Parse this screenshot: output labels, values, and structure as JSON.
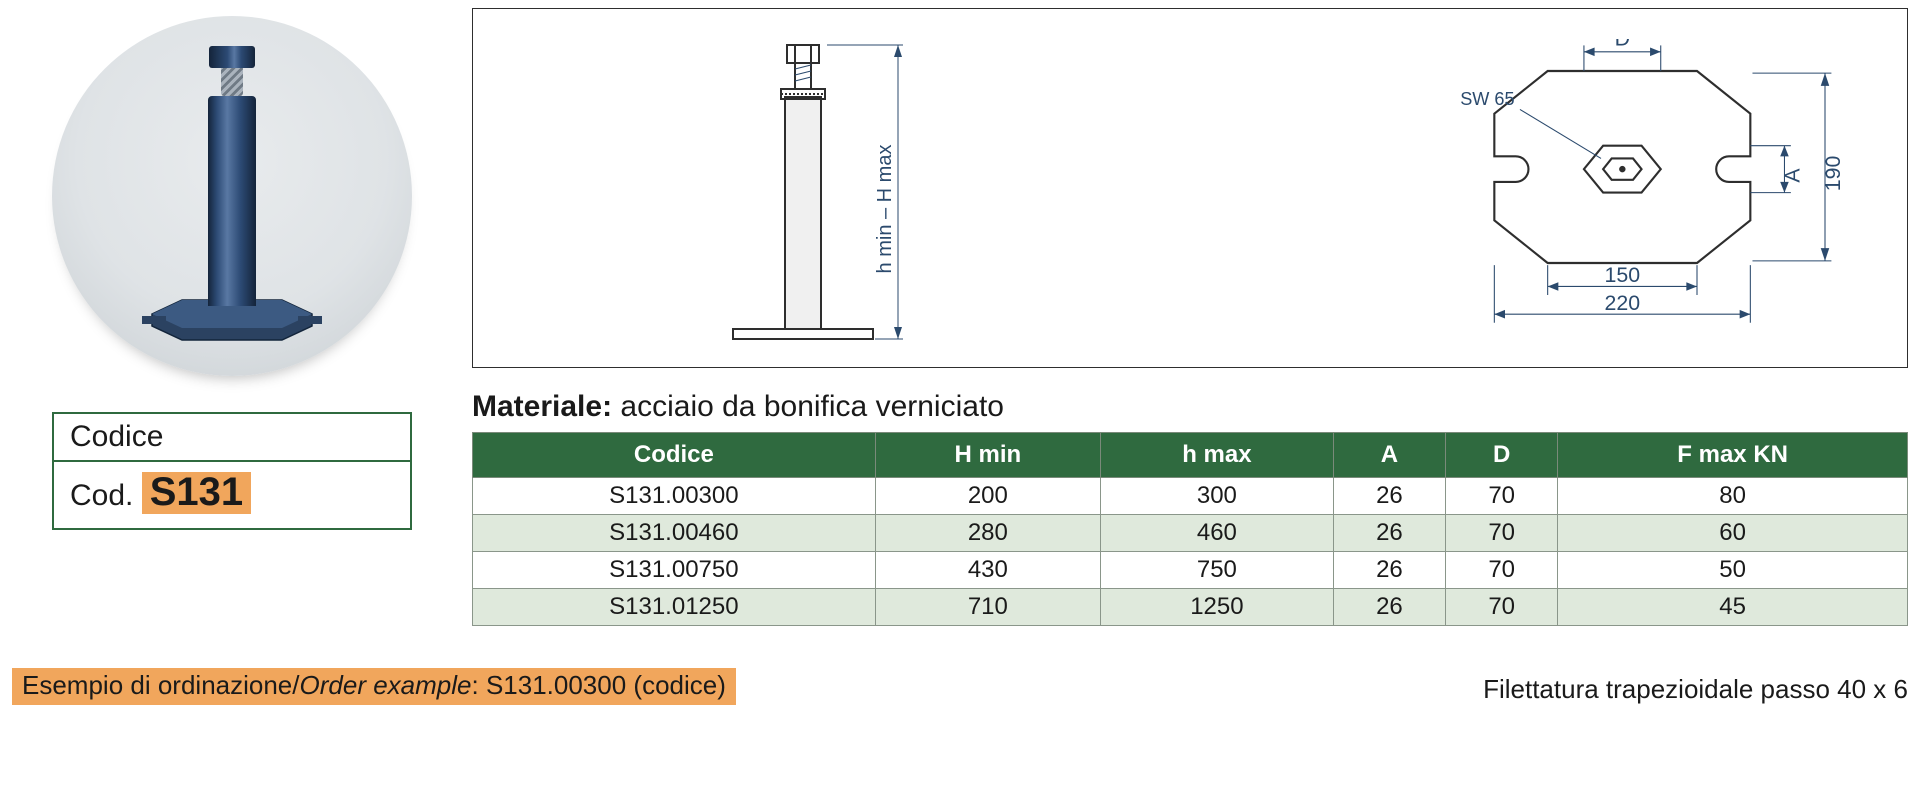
{
  "codice_box": {
    "header": "Codice",
    "prefix": "Cod.",
    "value": "S131"
  },
  "drawing": {
    "height_label": "h min – H max",
    "sw_label": "SW 65",
    "top_dim_letter": "D",
    "right_dim_letter": "A",
    "right_dim_value": "190",
    "bottom_dim_inner": "150",
    "bottom_dim_outer": "220",
    "colors": {
      "dim_line": "#2b4a6d",
      "outline": "#2e2e2e"
    }
  },
  "material": {
    "label": "Materiale:",
    "value": "acciaio da bonifica verniciato"
  },
  "table": {
    "columns": [
      "Codice",
      "H min",
      "h max",
      "A",
      "D",
      "F max KN"
    ],
    "rows": [
      [
        "S131.00300",
        "200",
        "300",
        "26",
        "70",
        "80"
      ],
      [
        "S131.00460",
        "280",
        "460",
        "26",
        "70",
        "60"
      ],
      [
        "S131.00750",
        "430",
        "750",
        "26",
        "70",
        "50"
      ],
      [
        "S131.01250",
        "710",
        "1250",
        "26",
        "70",
        "45"
      ]
    ],
    "header_bg": "#2f6a3f",
    "header_fg": "#ffffff",
    "row_bg_odd": "#ffffff",
    "row_bg_even": "#dfe9dc",
    "border_color": "#8a968a"
  },
  "footer": {
    "example_label_it": "Esempio di ordinazione",
    "example_label_en": "Order example",
    "example_value": "S131.00300 (codice)",
    "thread_note": "Filettatura trapezioidale passo 40 x 6"
  },
  "colors": {
    "highlight": "#f1a65c",
    "panel_border": "#2e2e2e",
    "green": "#2f6a3f"
  }
}
